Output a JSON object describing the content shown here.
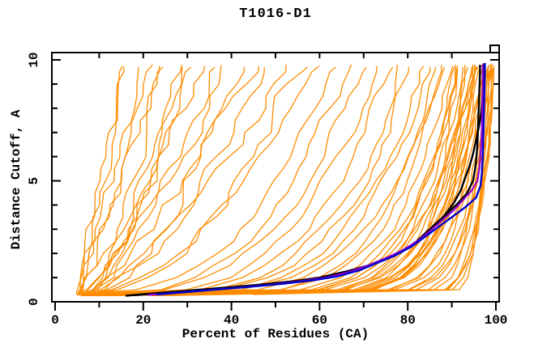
{
  "chart_data": {
    "type": "line",
    "title": "T1016-D1",
    "xlabel": "Percent of Residues (CA)",
    "ylabel": "Distance Cutoff, A",
    "xlim": [
      0,
      100
    ],
    "ylim": [
      0,
      10
    ],
    "x_major_ticks": [
      0,
      20,
      40,
      60,
      80,
      100
    ],
    "x_minor_ticks": [
      10,
      30,
      50,
      70,
      90
    ],
    "y_major_ticks": [
      0,
      5,
      10
    ],
    "y_minor_ticks": [
      1,
      2,
      3,
      4,
      6,
      7,
      8,
      9
    ],
    "grid": false,
    "legend_position": "none",
    "colors": {
      "background_curves": "#FF8C00",
      "highlight_black": "#000000",
      "highlight_blue": "#0000CD",
      "highlight_purple": "#9400D3",
      "frame": "#000000",
      "text": "#000000"
    },
    "highlight_series": [
      {
        "name": "model-black-1",
        "color_key": "highlight_black",
        "width": 2.4,
        "points": [
          [
            16,
            0.25
          ],
          [
            26,
            0.4
          ],
          [
            36,
            0.55
          ],
          [
            46,
            0.7
          ],
          [
            54,
            0.85
          ],
          [
            60,
            1.0
          ],
          [
            66,
            1.25
          ],
          [
            71,
            1.5
          ],
          [
            75,
            1.8
          ],
          [
            79,
            2.1
          ],
          [
            82,
            2.5
          ],
          [
            85,
            3.0
          ],
          [
            88,
            3.5
          ],
          [
            91,
            4.0
          ],
          [
            93.5,
            4.5
          ],
          [
            94.8,
            5.0
          ],
          [
            95.3,
            5.5
          ],
          [
            95.6,
            6.0
          ],
          [
            95.8,
            6.5
          ],
          [
            95.9,
            7.0
          ],
          [
            96.0,
            7.5
          ],
          [
            96.1,
            8.0
          ],
          [
            96.2,
            8.5
          ],
          [
            96.3,
            9.0
          ],
          [
            96.4,
            9.5
          ],
          [
            96.4,
            9.8
          ]
        ]
      },
      {
        "name": "model-black-2",
        "color_key": "highlight_black",
        "width": 2.4,
        "points": [
          [
            18,
            0.27
          ],
          [
            28,
            0.42
          ],
          [
            38,
            0.57
          ],
          [
            48,
            0.72
          ],
          [
            56,
            0.88
          ],
          [
            62,
            1.05
          ],
          [
            68,
            1.3
          ],
          [
            72,
            1.55
          ],
          [
            76,
            1.85
          ],
          [
            80,
            2.2
          ],
          [
            83,
            2.6
          ],
          [
            86,
            3.1
          ],
          [
            88.5,
            3.6
          ],
          [
            90.5,
            4.1
          ],
          [
            92,
            4.6
          ],
          [
            93,
            5.1
          ],
          [
            94,
            5.6
          ],
          [
            94.8,
            6.1
          ],
          [
            95.4,
            6.6
          ],
          [
            96.0,
            7.1
          ],
          [
            96.5,
            7.6
          ],
          [
            96.8,
            8.1
          ],
          [
            97.0,
            8.6
          ],
          [
            97.1,
            9.0
          ],
          [
            97.2,
            9.5
          ],
          [
            97.2,
            9.85
          ]
        ]
      },
      {
        "name": "model-purple",
        "color_key": "highlight_purple",
        "width": 2.2,
        "points": [
          [
            21,
            0.28
          ],
          [
            31,
            0.43
          ],
          [
            41,
            0.58
          ],
          [
            50,
            0.73
          ],
          [
            57,
            0.88
          ],
          [
            62,
            1.02
          ],
          [
            67,
            1.25
          ],
          [
            71,
            1.5
          ],
          [
            75,
            1.8
          ],
          [
            79,
            2.15
          ],
          [
            82.5,
            2.55
          ],
          [
            85.5,
            3.0
          ],
          [
            88,
            3.4
          ],
          [
            90.5,
            3.8
          ],
          [
            92.5,
            4.2
          ],
          [
            94.5,
            4.6
          ],
          [
            95.8,
            5.0
          ],
          [
            96.3,
            5.6
          ],
          [
            96.6,
            6.3
          ],
          [
            96.8,
            7.1
          ],
          [
            96.9,
            8.0
          ],
          [
            97.0,
            8.9
          ],
          [
            97.0,
            9.8
          ]
        ]
      },
      {
        "name": "model-blue",
        "color_key": "highlight_blue",
        "width": 2.4,
        "points": [
          [
            23,
            0.3
          ],
          [
            33,
            0.45
          ],
          [
            43,
            0.6
          ],
          [
            52,
            0.75
          ],
          [
            59,
            0.9
          ],
          [
            64,
            1.05
          ],
          [
            69,
            1.3
          ],
          [
            73,
            1.6
          ],
          [
            77,
            1.9
          ],
          [
            81,
            2.3
          ],
          [
            84,
            2.7
          ],
          [
            87,
            3.1
          ],
          [
            90,
            3.5
          ],
          [
            93,
            3.9
          ],
          [
            95.5,
            4.3
          ],
          [
            96.5,
            4.8
          ],
          [
            96.8,
            5.3
          ],
          [
            97.0,
            5.9
          ],
          [
            97.1,
            6.5
          ],
          [
            97.2,
            7.2
          ],
          [
            97.3,
            8.0
          ],
          [
            97.4,
            8.8
          ],
          [
            97.5,
            9.5
          ],
          [
            97.5,
            9.87
          ]
        ]
      }
    ],
    "background_series": {
      "name": "server-prediction-curves",
      "color_key": "background_curves",
      "width": 1.3,
      "param_format": [
        "start_pct",
        "top_pct",
        "shape_g",
        "cutoff_start",
        "cutoff_top",
        "wiggle_pct"
      ],
      "curves": [
        [
          5,
          15.5,
          1.15,
          0.3,
          9.7,
          2.2
        ],
        [
          5.5,
          17,
          1.0,
          0.3,
          9.75,
          2.4
        ],
        [
          6,
          19,
          1.25,
          0.25,
          9.7,
          2.6
        ],
        [
          4.5,
          21,
          1.1,
          0.3,
          9.8,
          2.4
        ],
        [
          6.5,
          23,
          1.35,
          0.3,
          9.7,
          2.6
        ],
        [
          5,
          25,
          1.2,
          0.25,
          9.75,
          2.8
        ],
        [
          7,
          27,
          1.45,
          0.3,
          9.7,
          2.6
        ],
        [
          5.5,
          29,
          1.3,
          0.3,
          9.8,
          2.8
        ],
        [
          6,
          31,
          1.5,
          0.25,
          9.7,
          2.8
        ],
        [
          7.5,
          33.5,
          1.35,
          0.3,
          9.75,
          3.0
        ],
        [
          5,
          36,
          1.55,
          0.3,
          9.7,
          3.0
        ],
        [
          6.5,
          39,
          1.4,
          0.25,
          9.8,
          3.0
        ],
        [
          8,
          42,
          1.6,
          0.3,
          9.7,
          3.0
        ],
        [
          5.5,
          45,
          1.5,
          0.3,
          9.75,
          3.2
        ],
        [
          7,
          48,
          1.7,
          0.25,
          9.7,
          3.2
        ],
        [
          6,
          52,
          1.6,
          0.3,
          9.8,
          3.2
        ],
        [
          8.5,
          56,
          1.8,
          0.3,
          9.7,
          3.4
        ],
        [
          6.5,
          60,
          1.7,
          0.25,
          9.75,
          3.4
        ],
        [
          5,
          64,
          2.6,
          0.3,
          9.7,
          2.0
        ],
        [
          7,
          67,
          2.9,
          0.25,
          9.8,
          2.0
        ],
        [
          5.5,
          70,
          3.2,
          0.3,
          9.7,
          2.0
        ],
        [
          8,
          73,
          3.5,
          0.3,
          9.75,
          2.0
        ],
        [
          6,
          76,
          3.8,
          0.25,
          9.7,
          1.8
        ],
        [
          9,
          79,
          4.1,
          0.3,
          9.8,
          1.8
        ],
        [
          6.5,
          81,
          4.4,
          0.3,
          9.7,
          1.8
        ],
        [
          7.5,
          83,
          4.7,
          0.25,
          9.75,
          1.8
        ],
        [
          5,
          85,
          5.0,
          0.3,
          9.7,
          1.6
        ],
        [
          6,
          86.5,
          5.5,
          0.3,
          9.7,
          1.4
        ],
        [
          8,
          87.5,
          6,
          0.25,
          9.8,
          1.4
        ],
        [
          5,
          88.5,
          6.5,
          0.3,
          9.7,
          1.4
        ],
        [
          10,
          89.5,
          7,
          0.3,
          9.75,
          1.3
        ],
        [
          6.5,
          90.5,
          7.5,
          0.25,
          9.7,
          1.3
        ],
        [
          9,
          91,
          8,
          0.3,
          9.8,
          1.3
        ],
        [
          5.5,
          91.5,
          8.5,
          0.3,
          9.7,
          1.2
        ],
        [
          11,
          92,
          9,
          0.25,
          9.75,
          1.2
        ],
        [
          7,
          92.5,
          9.5,
          0.3,
          9.7,
          1.2
        ],
        [
          8.5,
          93,
          10,
          0.3,
          9.8,
          1.2
        ],
        [
          6,
          93.5,
          10.5,
          0.25,
          9.7,
          1.2
        ],
        [
          12,
          94,
          11,
          0.3,
          9.75,
          1.1
        ],
        [
          7.5,
          94.3,
          11.5,
          0.3,
          9.7,
          1.1
        ],
        [
          9.5,
          94.6,
          12,
          0.25,
          9.8,
          1.1
        ],
        [
          6.5,
          95,
          8,
          0.3,
          9.7,
          1.1
        ],
        [
          10.5,
          95.3,
          9,
          0.3,
          9.75,
          1.1
        ],
        [
          8,
          95.6,
          10,
          0.25,
          9.7,
          1.0
        ],
        [
          12.5,
          96,
          11,
          0.3,
          9.8,
          1.0
        ],
        [
          7,
          96.3,
          12,
          0.3,
          9.7,
          1.0
        ],
        [
          9,
          96.6,
          9.5,
          0.25,
          9.75,
          1.0
        ],
        [
          11,
          97,
          10.5,
          0.3,
          9.7,
          1.0
        ],
        [
          8.5,
          97.3,
          11.5,
          0.3,
          9.8,
          1.0
        ],
        [
          13,
          97.6,
          12.5,
          0.25,
          9.75,
          0.9
        ],
        [
          10,
          98,
          13,
          0.3,
          9.7,
          0.9
        ],
        [
          9.5,
          98.3,
          14,
          0.3,
          9.8,
          0.9
        ],
        [
          12,
          98.6,
          15,
          0.25,
          9.75,
          0.9
        ],
        [
          11.5,
          99,
          16,
          0.3,
          9.85,
          0.8
        ],
        [
          13.5,
          99.3,
          17,
          0.3,
          9.8,
          0.8
        ],
        [
          18,
          98.9,
          20,
          0.3,
          9.7,
          0.8
        ],
        [
          25,
          99.2,
          24,
          0.25,
          9.75,
          0.8
        ],
        [
          30,
          99.0,
          28,
          0.3,
          9.65,
          0.8
        ],
        [
          35,
          98.6,
          22,
          0.3,
          9.6,
          0.8
        ],
        [
          22,
          99.4,
          26,
          0.25,
          9.8,
          0.8
        ],
        [
          40,
          97.8,
          18,
          0.35,
          9.55,
          0.8
        ],
        [
          45,
          98.2,
          30,
          0.3,
          9.6,
          0.8
        ]
      ]
    }
  }
}
